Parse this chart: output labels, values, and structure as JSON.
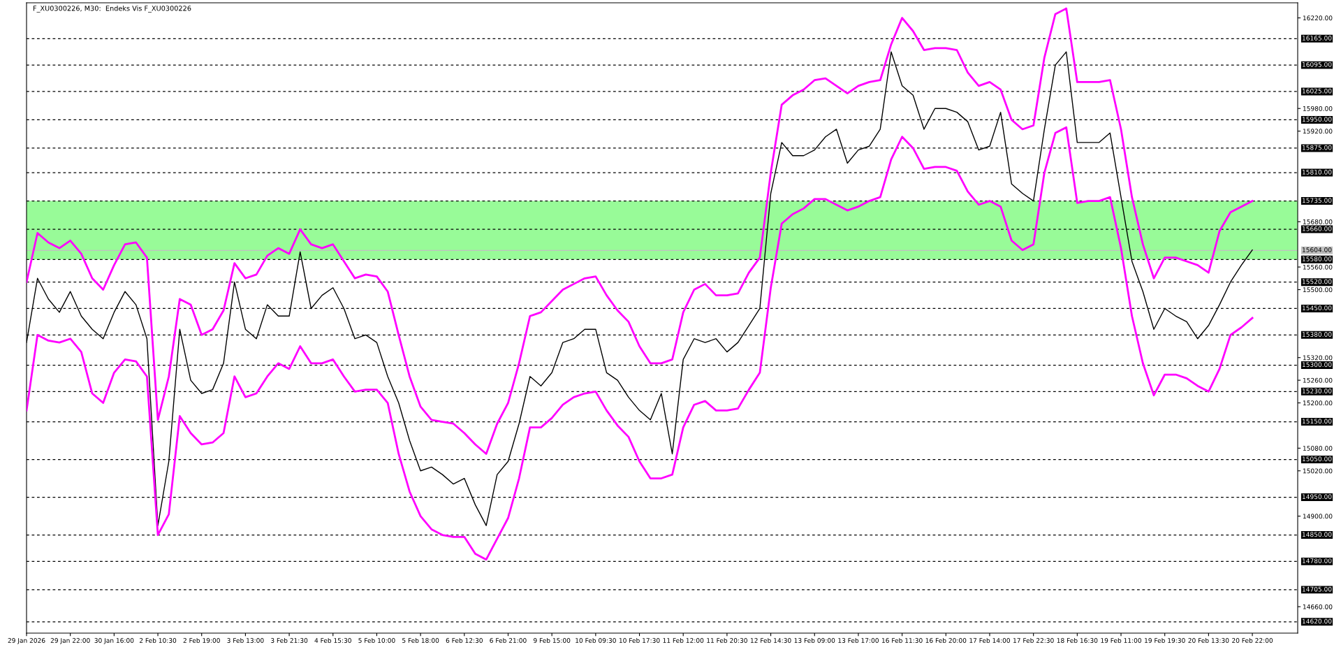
{
  "chart_data": {
    "type": "line",
    "title": "F_XU0300226, M30:  Endeks Vis F_XU0300226",
    "categories": [
      "29 Jan 2026",
      null,
      null,
      null,
      "29 Jan 22:00",
      null,
      null,
      null,
      "30 Jan 16:00",
      null,
      null,
      null,
      "2 Feb 10:30",
      null,
      null,
      null,
      "2 Feb 19:00",
      null,
      null,
      null,
      "3 Feb 13:00",
      null,
      null,
      null,
      "3 Feb 21:30",
      null,
      null,
      null,
      "4 Feb 15:30",
      null,
      null,
      null,
      "5 Feb 10:00",
      null,
      null,
      null,
      "5 Feb 18:00",
      null,
      null,
      null,
      "6 Feb 12:30",
      null,
      null,
      null,
      "6 Feb 21:00",
      null,
      null,
      null,
      "9 Feb 15:00",
      null,
      null,
      null,
      "10 Feb 09:30",
      null,
      null,
      null,
      "10 Feb 17:30",
      null,
      null,
      null,
      "11 Feb 12:00",
      null,
      null,
      null,
      "11 Feb 20:30",
      null,
      null,
      null,
      "12 Feb 14:30",
      null,
      null,
      null,
      "13 Feb 09:00",
      null,
      null,
      null,
      "13 Feb 17:00",
      null,
      null,
      null,
      "16 Feb 11:30",
      null,
      null,
      null,
      "16 Feb 20:00",
      null,
      null,
      null,
      "17 Feb 14:00",
      null,
      null,
      null,
      "17 Feb 22:30",
      null,
      null,
      null,
      "18 Feb 16:30",
      null,
      null,
      null,
      "19 Feb 11:00",
      null,
      null,
      null,
      "19 Feb 19:30",
      null,
      null,
      null,
      "20 Feb 13:30",
      null,
      null,
      null,
      "20 Feb 22:00"
    ],
    "series": [
      {
        "color": "#000000",
        "values": [
          15360,
          15530,
          15475,
          15440,
          15495,
          15430,
          15395,
          15370,
          15440,
          15495,
          15460,
          15370,
          14875,
          15045,
          15395,
          15260,
          15225,
          15235,
          15305,
          15520,
          15395,
          15370,
          15460,
          15430,
          15430,
          15600,
          15450,
          15485,
          15505,
          15450,
          15370,
          15380,
          15360,
          15270,
          15200,
          15100,
          15020,
          15030,
          15010,
          14985,
          15000,
          14930,
          14875,
          15010,
          15045,
          15145,
          15270,
          15245,
          15280,
          15360,
          15370,
          15395,
          15395,
          15280,
          15260,
          15215,
          15180,
          15155,
          15225,
          15065,
          15315,
          15370,
          15360,
          15370,
          15335,
          15360,
          15405,
          15450,
          15755,
          15890,
          15855,
          15855,
          15870,
          15905,
          15925,
          15835,
          15870,
          15880,
          15925,
          16130,
          16040,
          16015,
          15925,
          15980,
          15980,
          15970,
          15945,
          15870,
          15880,
          15970,
          15780,
          15755,
          15735,
          15925,
          16095,
          16130,
          15890,
          15890,
          15890,
          15915,
          15745,
          15575,
          15495,
          15395,
          15450,
          15430,
          15415,
          15370,
          15405,
          15460,
          15520,
          15565,
          15605
        ]
      },
      {
        "color": "#ff00ff",
        "values": [
          15520,
          15650,
          15625,
          15610,
          15630,
          15595,
          15530,
          15500,
          15565,
          15620,
          15625,
          15585,
          15155,
          15270,
          15475,
          15460,
          15380,
          15395,
          15445,
          15570,
          15530,
          15540,
          15590,
          15610,
          15595,
          15660,
          15620,
          15610,
          15620,
          15575,
          15530,
          15540,
          15535,
          15495,
          15380,
          15270,
          15190,
          15155,
          15150,
          15145,
          15120,
          15090,
          15065,
          15145,
          15200,
          15305,
          15430,
          15440,
          15470,
          15500,
          15515,
          15530,
          15535,
          15485,
          15445,
          15415,
          15350,
          15305,
          15305,
          15315,
          15440,
          15500,
          15515,
          15485,
          15485,
          15490,
          15545,
          15585,
          15810,
          15990,
          16015,
          16030,
          16055,
          16060,
          16040,
          16020,
          16040,
          16050,
          16055,
          16150,
          16220,
          16185,
          16135,
          16140,
          16140,
          16135,
          16075,
          16040,
          16050,
          16030,
          15950,
          15925,
          15935,
          16115,
          16230,
          16245,
          16050,
          16050,
          16050,
          16055,
          15925,
          15745,
          15620,
          15530,
          15585,
          15585,
          15575,
          15565,
          15545,
          15655,
          15705,
          15720,
          15735
        ]
      },
      {
        "color": "#ff00ff",
        "values": [
          15180,
          15380,
          15365,
          15360,
          15370,
          15335,
          15225,
          15200,
          15280,
          15315,
          15310,
          15270,
          14850,
          14905,
          15165,
          15120,
          15090,
          15095,
          15120,
          15270,
          15215,
          15225,
          15270,
          15305,
          15290,
          15350,
          15305,
          15305,
          15315,
          15270,
          15230,
          15235,
          15235,
          15200,
          15065,
          14965,
          14900,
          14865,
          14850,
          14845,
          14845,
          14800,
          14785,
          14840,
          14895,
          15000,
          15135,
          15135,
          15160,
          15195,
          15215,
          15225,
          15230,
          15180,
          15140,
          15110,
          15045,
          15000,
          15000,
          15010,
          15135,
          15195,
          15205,
          15180,
          15180,
          15185,
          15235,
          15280,
          15505,
          15675,
          15700,
          15715,
          15740,
          15740,
          15725,
          15710,
          15720,
          15735,
          15745,
          15845,
          15905,
          15875,
          15820,
          15825,
          15825,
          15815,
          15760,
          15725,
          15735,
          15720,
          15630,
          15605,
          15620,
          15810,
          15915,
          15930,
          15730,
          15735,
          15735,
          15745,
          15610,
          15430,
          15305,
          15220,
          15275,
          15275,
          15265,
          15245,
          15230,
          15290,
          15380,
          15400,
          15425
        ]
      }
    ],
    "ylim": [
      14590,
      16260
    ],
    "yticks": [
      {
        "value": 14660,
        "label": "14660.00"
      },
      {
        "value": 14900,
        "label": "14900.00"
      },
      {
        "value": 15020,
        "label": "15020.00"
      },
      {
        "value": 15080,
        "label": "15080.00"
      },
      {
        "value": 15200,
        "label": "15200.00"
      },
      {
        "value": 15260,
        "label": "15260.00"
      },
      {
        "value": 15320,
        "label": "15320.00"
      },
      {
        "value": 15500,
        "label": "15500.00"
      },
      {
        "value": 15560,
        "label": "15560.00"
      },
      {
        "value": 15680,
        "label": "15680.00"
      },
      {
        "value": 15920,
        "label": "15920.00"
      },
      {
        "value": 15980,
        "label": "15980.00"
      },
      {
        "value": 16220,
        "label": "16220.00"
      }
    ],
    "bands": [
      {
        "axis": "y",
        "from": 15580,
        "to": 15735,
        "color": "#98fb98"
      }
    ],
    "ref_lines": [
      {
        "axis": "y",
        "value": 16165,
        "label": "16165.00",
        "color": "#000000",
        "line_style": "dashed"
      },
      {
        "axis": "y",
        "value": 16095,
        "label": "16095.00",
        "color": "#000000",
        "line_style": "dashed"
      },
      {
        "axis": "y",
        "value": 16025,
        "label": "16025.00",
        "color": "#000000",
        "line_style": "dashed"
      },
      {
        "axis": "y",
        "value": 15950,
        "label": "15950.00",
        "color": "#000000",
        "line_style": "dashed"
      },
      {
        "axis": "y",
        "value": 15875,
        "label": "15875.00",
        "color": "#000000",
        "line_style": "dashed"
      },
      {
        "axis": "y",
        "value": 15810,
        "label": "15810.00",
        "color": "#000000",
        "line_style": "dashed"
      },
      {
        "axis": "y",
        "value": 15735,
        "label": "15735.00",
        "color": "#000000",
        "line_style": "dashed"
      },
      {
        "axis": "y",
        "value": 15660,
        "label": "15660.00",
        "color": "#000000",
        "line_style": "dashed"
      },
      {
        "axis": "y",
        "value": 15604,
        "label": "15604.00",
        "color": "#c0c0c0",
        "line_style": "solid"
      },
      {
        "axis": "y",
        "value": 15580,
        "label": "15580.00",
        "color": "#000000",
        "line_style": "dashed"
      },
      {
        "axis": "y",
        "value": 15520,
        "label": "15520.00",
        "color": "#000000",
        "line_style": "dashed"
      },
      {
        "axis": "y",
        "value": 15450,
        "label": "15450.00",
        "color": "#000000",
        "line_style": "dashed"
      },
      {
        "axis": "y",
        "value": 15380,
        "label": "15380.00",
        "color": "#000000",
        "line_style": "dashed"
      },
      {
        "axis": "y",
        "value": 15300,
        "label": "15300.00",
        "color": "#000000",
        "line_style": "dashed"
      },
      {
        "axis": "y",
        "value": 15230,
        "label": "15230.00",
        "color": "#000000",
        "line_style": "dashed"
      },
      {
        "axis": "y",
        "value": 15150,
        "label": "15150.00",
        "color": "#000000",
        "line_style": "dashed"
      },
      {
        "axis": "y",
        "value": 15050,
        "label": "15050.00",
        "color": "#000000",
        "line_style": "dashed"
      },
      {
        "axis": "y",
        "value": 14950,
        "label": "14950.00",
        "color": "#000000",
        "line_style": "dashed"
      },
      {
        "axis": "y",
        "value": 14850,
        "label": "14850.00",
        "color": "#000000",
        "line_style": "dashed"
      },
      {
        "axis": "y",
        "value": 14780,
        "label": "14780.00",
        "color": "#000000",
        "line_style": "dashed"
      },
      {
        "axis": "y",
        "value": 14705,
        "label": "14705.00",
        "color": "#000000",
        "line_style": "dashed"
      },
      {
        "axis": "y",
        "value": 14620,
        "label": "14620.00",
        "color": "#000000",
        "line_style": "dashed"
      }
    ]
  }
}
